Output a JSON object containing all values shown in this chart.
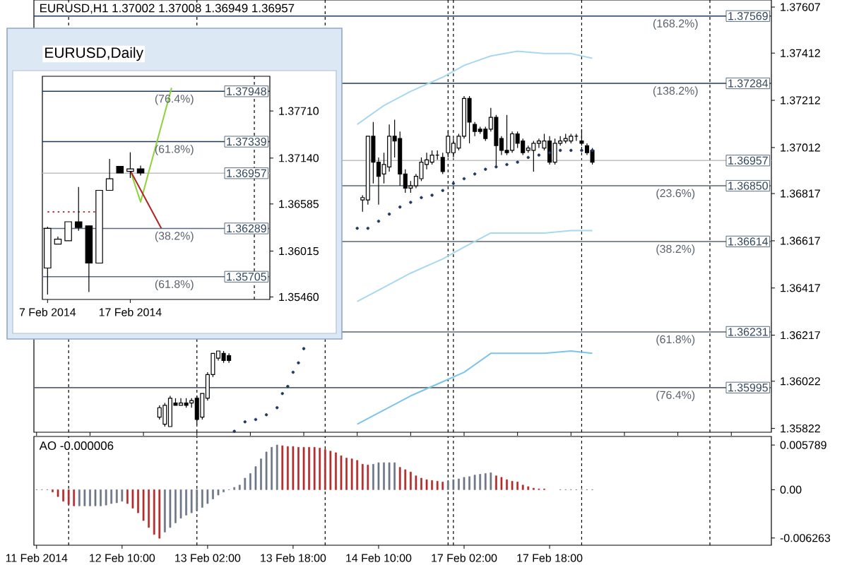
{
  "chart_data": [
    {
      "type": "candlestick",
      "title": "EURUSD,H1 1.37002 1.37008 1.36949 1.36957",
      "categories": [
        null,
        null,
        null,
        null,
        null,
        null,
        null,
        null,
        null,
        null,
        null,
        null,
        null,
        null,
        null,
        null,
        null,
        null,
        null,
        null,
        null,
        null,
        null,
        null,
        null,
        null,
        null,
        null,
        null,
        null,
        null,
        null,
        null,
        null,
        null,
        null,
        null,
        null,
        null,
        null,
        null,
        null,
        null,
        null,
        null,
        null,
        null,
        null,
        null,
        null,
        null,
        null,
        null,
        null,
        null,
        null,
        null,
        null,
        null,
        null,
        null,
        null,
        null,
        null,
        null,
        null,
        null,
        null,
        null,
        null,
        null,
        null,
        null,
        null,
        null,
        null,
        null,
        null,
        null,
        null,
        null,
        null,
        null,
        null,
        null,
        null,
        null,
        null,
        null,
        null,
        null,
        null,
        null,
        null,
        null,
        null,
        null,
        null,
        null,
        null,
        null,
        null,
        null,
        null,
        null,
        null,
        null,
        null,
        null,
        null,
        null,
        null,
        null,
        null,
        null,
        null,
        null,
        null,
        null,
        null,
        null,
        null,
        null,
        null,
        null,
        null,
        null,
        null,
        null,
        null,
        null,
        null,
        null,
        null,
        null,
        null,
        null,
        null
      ],
      "ohlc": [
        null,
        null,
        null,
        null,
        null,
        null,
        null,
        null,
        null,
        null,
        null,
        null,
        null,
        null,
        null,
        null,
        null,
        null,
        null,
        null,
        null,
        null,
        null,
        [
          1.3587,
          1.3592,
          1.3586,
          1.3591
        ],
        [
          1.3584,
          1.3593,
          1.3583,
          1.3592
        ],
        [
          1.3583,
          1.3596,
          1.3583,
          1.3595
        ],
        [
          1.3593,
          1.3595,
          1.3592,
          1.3592
        ],
        [
          1.3592,
          1.3595,
          1.3592,
          1.3593
        ],
        [
          1.3593,
          1.3595,
          1.3591,
          1.3592
        ],
        [
          1.3593,
          1.3595,
          1.3591,
          1.3594
        ],
        [
          1.3595,
          1.3596,
          1.3584,
          1.3586
        ],
        [
          1.3587,
          1.3597,
          1.3586,
          1.3597
        ],
        [
          1.3595,
          1.3606,
          1.3594,
          1.3605
        ],
        [
          1.3605,
          1.3614,
          1.3604,
          1.3614
        ],
        [
          1.3612,
          1.3615,
          1.3611,
          1.3615
        ],
        [
          1.3614,
          1.3615,
          1.361,
          1.3611
        ],
        [
          1.3613,
          1.3614,
          1.361,
          1.3611
        ],
        null,
        null,
        null,
        null,
        null,
        null,
        null,
        null,
        null,
        null,
        null,
        null,
        null,
        null,
        null,
        null,
        null,
        null,
        null,
        null,
        null,
        null,
        null,
        null,
        [
          1.3679,
          1.3681,
          1.3674,
          1.368
        ],
        [
          1.3679,
          1.3706,
          1.3677,
          1.3706
        ],
        [
          1.3706,
          1.3712,
          1.3686,
          1.3695
        ],
        [
          1.3695,
          1.3697,
          1.3677,
          1.3689
        ],
        [
          1.369,
          1.3699,
          1.3686,
          1.3694
        ],
        [
          1.3693,
          1.3711,
          1.3691,
          1.3706
        ],
        [
          1.3706,
          1.3713,
          1.3697,
          1.3704
        ],
        [
          1.3705,
          1.3708,
          1.3685,
          1.369
        ],
        [
          1.369,
          1.3692,
          1.3682,
          1.3684
        ],
        [
          1.3684,
          1.3687,
          1.3682,
          1.3685
        ],
        [
          1.3685,
          1.369,
          1.3684,
          1.3689
        ],
        [
          1.3688,
          1.3697,
          1.3687,
          1.3695
        ],
        [
          1.3694,
          1.3699,
          1.3692,
          1.3696
        ],
        [
          1.3695,
          1.37,
          1.3694,
          1.3698
        ],
        [
          1.3698,
          1.37,
          1.3696,
          1.3698
        ],
        [
          1.3697,
          1.3699,
          1.369,
          1.3691
        ],
        [
          1.3699,
          1.3708,
          1.3697,
          1.3706
        ],
        [
          1.3699,
          1.3705,
          1.3697,
          1.3703
        ],
        [
          1.3701,
          1.3707,
          1.37,
          1.3706
        ],
        [
          1.3706,
          1.3723,
          1.3705,
          1.3722
        ],
        [
          1.3722,
          1.3723,
          1.3703,
          1.3712
        ],
        [
          1.3711,
          1.3712,
          1.3706,
          1.3708
        ],
        [
          1.3709,
          1.371,
          1.3707,
          1.3708
        ],
        [
          1.3709,
          1.371,
          1.3704,
          1.3705
        ],
        [
          1.3709,
          1.3718,
          1.3708,
          1.3714
        ],
        [
          1.3714,
          1.3715,
          1.3693,
          1.3702
        ],
        [
          1.3705,
          1.3706,
          1.3698,
          1.37
        ],
        [
          1.37,
          1.3715,
          1.3698,
          1.3699
        ],
        [
          1.37,
          1.3708,
          1.3699,
          1.3707
        ],
        [
          1.3707,
          1.3708,
          1.3701,
          1.3703
        ],
        [
          1.3704,
          1.3705,
          1.3698,
          1.3699
        ],
        [
          1.37,
          1.3702,
          1.3699,
          1.3701
        ],
        [
          1.37,
          1.3704,
          1.3691,
          1.3703
        ],
        [
          1.3703,
          1.3705,
          1.3701,
          1.3704
        ],
        [
          1.3701,
          1.3707,
          1.37,
          1.3704
        ],
        [
          1.3704,
          1.3706,
          1.3694,
          1.3695
        ],
        [
          1.3695,
          1.3705,
          1.3694,
          1.3703
        ],
        [
          1.3703,
          1.3706,
          1.3702,
          1.3704
        ],
        [
          1.3704,
          1.3707,
          1.3703,
          1.3705
        ],
        [
          1.3704,
          1.3707,
          1.3703,
          1.3706
        ],
        [
          1.3706,
          1.3707,
          1.3704,
          1.3706
        ],
        [
          1.3704,
          1.3709,
          1.3702,
          1.3703
        ],
        [
          1.3702,
          1.3703,
          1.3698,
          1.3699
        ],
        [
          1.37,
          1.3701,
          1.3694,
          1.3695
        ],
        null,
        null,
        null,
        null,
        null,
        null,
        null,
        null,
        null,
        null,
        null,
        null,
        null,
        null,
        null,
        null,
        null,
        null,
        null,
        null,
        null,
        null,
        null,
        null,
        null,
        null,
        null,
        null,
        null,
        null,
        null,
        null,
        null
      ],
      "ylim": [
        1.35806,
        1.37637
      ],
      "yticks": [
        1.37607,
        1.37412,
        1.37212,
        1.37012,
        1.36817,
        1.36617,
        1.36417,
        1.36217,
        1.36022,
        1.35822
      ],
      "tick_labels": "y",
      "series": [
        {
          "type": "line",
          "color": "#a8d8f0",
          "values": [
            null,
            null,
            null,
            null,
            null,
            null,
            null,
            null,
            null,
            null,
            null,
            null,
            null,
            null,
            null,
            null,
            null,
            null,
            null,
            null,
            null,
            null,
            null,
            null,
            null,
            null,
            null,
            null,
            null,
            null,
            null,
            null,
            null,
            null,
            null,
            null,
            null,
            null,
            null,
            null,
            null,
            null,
            null,
            null,
            null,
            null,
            null,
            null,
            null,
            null,
            null,
            null,
            null,
            null,
            null,
            null,
            null,
            null,
            null,
            null,
            1.3711,
            null,
            null,
            null,
            null,
            1.3719,
            null,
            null,
            null,
            null,
            1.3725,
            null,
            null,
            null,
            null,
            null,
            1.3731,
            null,
            null,
            null,
            1.3736,
            null,
            null,
            null,
            null,
            1.374,
            null,
            null,
            null,
            null,
            1.3742,
            null,
            null,
            null,
            null,
            1.3741,
            null,
            null,
            null,
            null,
            1.3741,
            null,
            null,
            null,
            1.3739,
            null,
            null,
            null,
            null,
            null,
            null,
            null,
            null,
            null,
            null,
            null,
            null,
            null,
            null,
            null,
            null,
            null,
            null,
            null,
            null,
            null,
            null,
            null,
            null,
            null,
            null,
            null,
            null,
            null,
            null,
            null,
            null,
            null
          ]
        },
        {
          "type": "line",
          "color": "#a8d8f0",
          "values": [
            null,
            null,
            null,
            null,
            null,
            null,
            null,
            null,
            null,
            null,
            null,
            null,
            null,
            null,
            null,
            null,
            null,
            null,
            null,
            null,
            null,
            null,
            null,
            null,
            null,
            null,
            null,
            null,
            null,
            null,
            null,
            null,
            null,
            null,
            null,
            null,
            null,
            null,
            null,
            null,
            null,
            null,
            null,
            null,
            null,
            null,
            null,
            null,
            null,
            null,
            null,
            null,
            null,
            null,
            null,
            null,
            null,
            null,
            null,
            null,
            1.3636,
            null,
            null,
            null,
            null,
            1.3642,
            null,
            null,
            null,
            null,
            1.3648,
            null,
            null,
            null,
            null,
            null,
            1.3654,
            null,
            null,
            null,
            1.3659,
            null,
            null,
            null,
            null,
            1.3665,
            null,
            null,
            null,
            null,
            1.3665,
            null,
            null,
            null,
            null,
            1.3665,
            null,
            null,
            null,
            null,
            1.3666,
            null,
            null,
            null,
            1.3666,
            null,
            null,
            null,
            null,
            null,
            null,
            null,
            null,
            null,
            null,
            null,
            null,
            null,
            null,
            null,
            null,
            null,
            null,
            null,
            null,
            null,
            null,
            null,
            null,
            null,
            null,
            null,
            null,
            null,
            null,
            null,
            null,
            null
          ]
        },
        {
          "type": "line",
          "color": "#7cc4ec",
          "values": [
            null,
            null,
            null,
            null,
            null,
            null,
            null,
            null,
            null,
            null,
            null,
            null,
            null,
            null,
            null,
            null,
            null,
            null,
            null,
            null,
            null,
            null,
            null,
            null,
            null,
            null,
            null,
            null,
            null,
            null,
            null,
            null,
            null,
            null,
            null,
            null,
            null,
            null,
            null,
            null,
            null,
            null,
            null,
            null,
            null,
            null,
            null,
            null,
            null,
            null,
            null,
            null,
            null,
            null,
            null,
            null,
            null,
            null,
            null,
            null,
            1.3584,
            null,
            null,
            null,
            null,
            1.359,
            null,
            null,
            null,
            null,
            1.3596,
            null,
            null,
            null,
            null,
            null,
            1.3602,
            null,
            null,
            null,
            1.3606,
            null,
            null,
            null,
            null,
            1.3614,
            null,
            null,
            null,
            null,
            1.3614,
            null,
            null,
            null,
            null,
            1.3614,
            null,
            null,
            null,
            null,
            1.3615,
            null,
            null,
            null,
            1.3614,
            null,
            null,
            null,
            null,
            null,
            null,
            null,
            null,
            null,
            null,
            null,
            null,
            null,
            null,
            null,
            null,
            null,
            null,
            null,
            null,
            null,
            null,
            null,
            null,
            null,
            null,
            null,
            null,
            null,
            null,
            null,
            null,
            null
          ]
        },
        {
          "type": "scatter",
          "marker": "circle",
          "color": "#1f3a5f",
          "values": [
            null,
            null,
            null,
            null,
            null,
            null,
            null,
            null,
            null,
            null,
            null,
            null,
            null,
            null,
            null,
            null,
            null,
            null,
            null,
            null,
            null,
            null,
            null,
            null,
            null,
            null,
            null,
            null,
            null,
            null,
            null,
            null,
            null,
            null,
            null,
            null,
            null,
            1.3581,
            null,
            1.3585,
            null,
            1.3586,
            null,
            1.3588,
            null,
            1.3591,
            1.3597,
            1.36,
            1.3606,
            1.361,
            1.3616,
            null,
            null,
            null,
            null,
            null,
            null,
            null,
            null,
            null,
            1.3667,
            null,
            1.3667,
            null,
            1.367,
            null,
            1.3673,
            null,
            1.3676,
            null,
            1.3678,
            null,
            1.368,
            null,
            1.3681,
            null,
            1.3683,
            null,
            1.3686,
            null,
            1.3688,
            null,
            1.369,
            null,
            1.3692,
            null,
            1.3693,
            null,
            1.3694,
            null,
            1.3695,
            null,
            1.3697,
            null,
            1.3698,
            null,
            1.3699,
            null,
            1.37,
            null,
            1.37,
            null,
            1.37,
            null,
            1.37,
            null,
            null,
            null,
            null,
            null,
            null,
            null,
            null,
            null,
            null,
            null,
            null,
            null,
            null,
            null,
            null,
            null,
            null,
            null,
            null,
            null,
            null,
            null,
            null,
            null,
            null,
            null,
            null,
            null,
            null,
            null,
            null,
            null
          ]
        }
      ],
      "ref_lines": [
        {
          "axis": "y",
          "value": 1.37569,
          "label": "1.37569",
          "color": "#1f3a5f"
        },
        {
          "axis": "y",
          "value": 1.37284,
          "label": "1.37284",
          "color": "#1f3a5f"
        },
        {
          "axis": "y",
          "value": 1.3685,
          "label": "1.36850",
          "color": "#5a6470"
        },
        {
          "axis": "y",
          "value": 1.36614,
          "label": "1.36614",
          "color": "#5a6470"
        },
        {
          "axis": "y",
          "value": 1.36231,
          "label": "1.36231",
          "color": "#5a6470"
        },
        {
          "axis": "y",
          "value": 1.35995,
          "label": "1.35995",
          "color": "#5a6470"
        },
        {
          "axis": "y",
          "value": 1.36957,
          "label": "1.36957",
          "color": "#c0c0c0"
        }
      ],
      "annotations": [
        {
          "text": "(168.2%)",
          "y": 1.37569
        },
        {
          "text": "(138.2%)",
          "y": 1.37284
        },
        {
          "text": "(23.6%)",
          "y": 1.3685
        },
        {
          "text": "(38.2%)",
          "y": 1.36614
        },
        {
          "text": "(61.8%)",
          "y": 1.36231
        },
        {
          "text": "(76.4%)",
          "y": 1.35995
        }
      ]
    },
    {
      "type": "candlestick",
      "title": "EURUSD,Daily",
      "categories": [
        "7 Feb 2014",
        null,
        null,
        null,
        null,
        null,
        null,
        null,
        "17 Feb 2014",
        null,
        null,
        null,
        null,
        null,
        null,
        null,
        null,
        null,
        null,
        null,
        null,
        null
      ],
      "ohlc": [
        [
          1.3581,
          1.3631,
          1.3549,
          1.3629
        ],
        [
          1.361,
          1.3619,
          1.361,
          1.3616
        ],
        [
          1.3614,
          1.3637,
          1.3614,
          1.3637
        ],
        [
          1.3637,
          1.3679,
          1.3626,
          1.363
        ],
        [
          1.3632,
          1.3632,
          1.3552,
          1.3587
        ],
        [
          1.3587,
          1.3675,
          1.3587,
          1.3675
        ],
        [
          1.3675,
          1.3713,
          1.3675,
          1.3689
        ],
        [
          1.3704,
          1.3704,
          1.3696,
          1.3696
        ],
        [
          1.3698,
          1.3721,
          1.369,
          1.3701
        ],
        [
          1.3701,
          1.3705,
          1.3693,
          1.3696
        ],
        null,
        null,
        null,
        null,
        null,
        null,
        null,
        null,
        null,
        null,
        null,
        null
      ],
      "ylim": [
        1.3543,
        1.3813
      ],
      "yticks": [
        {
          "value": 1.3771,
          "label": "1.37710"
        },
        {
          "value": 1.3714,
          "label": "1.37140"
        },
        1.36585,
        1.36015,
        {
          "value": 1.3546,
          "label": "1.35460"
        }
      ],
      "series": [
        {
          "type": "line",
          "color": "#cc3333",
          "line_style": "dotted",
          "values": [
            1.3649,
            null,
            null,
            null,
            null,
            1.3649,
            null,
            null,
            null,
            null,
            null,
            null,
            null,
            null,
            null,
            null,
            null,
            null,
            null,
            null,
            null,
            null
          ]
        },
        {
          "type": "line",
          "color": "#8cd43c",
          "values": [
            null,
            null,
            null,
            null,
            null,
            null,
            null,
            null,
            1.3699,
            1.3661,
            null,
            null,
            1.3799,
            null,
            null,
            null,
            null,
            null,
            null,
            null,
            null,
            null
          ]
        },
        {
          "type": "line",
          "color": "#b22222",
          "values": [
            null,
            null,
            null,
            null,
            null,
            null,
            null,
            null,
            1.3699,
            null,
            null,
            1.3629,
            null,
            null,
            null,
            null,
            null,
            null,
            null,
            null,
            null,
            null
          ]
        }
      ],
      "ref_lines": [
        {
          "axis": "y",
          "value": 1.37948,
          "label": "1.37948",
          "color": "#1f3a5f"
        },
        {
          "axis": "y",
          "value": 1.37339,
          "label": "1.37339",
          "color": "#1f3a5f"
        },
        {
          "axis": "y",
          "value": 1.36289,
          "label": "1.36289",
          "color": "#5a6a8a"
        },
        {
          "axis": "y",
          "value": 1.35705,
          "label": "1.35705",
          "color": "#5a6a8a"
        },
        {
          "axis": "y",
          "value": 1.36957,
          "label": "1.36957",
          "color": "#c0c0c0"
        }
      ],
      "annotations": [
        {
          "text": "(76.4%)",
          "y": 1.37948
        },
        {
          "text": "(61.8%)",
          "y": 1.37339
        },
        {
          "text": "(38.2%)",
          "y": 1.36289
        },
        {
          "text": "(61.8%)",
          "y": 1.35705
        }
      ]
    },
    {
      "type": "bar",
      "title": "AO -0.000006",
      "categories": [
        "11 Feb 2014",
        null,
        null,
        null,
        null,
        null,
        null,
        null,
        null,
        null,
        null,
        null,
        null,
        null,
        null,
        null,
        "12 Feb 10:00",
        null,
        null,
        null,
        null,
        null,
        null,
        null,
        null,
        null,
        null,
        null,
        null,
        null,
        null,
        null,
        "13 Feb 02:00",
        null,
        null,
        null,
        null,
        null,
        null,
        null,
        null,
        null,
        null,
        null,
        null,
        null,
        null,
        null,
        "13 Feb 18:00",
        null,
        null,
        null,
        null,
        null,
        null,
        null,
        null,
        null,
        null,
        null,
        null,
        null,
        null,
        null,
        "14 Feb 10:00",
        null,
        null,
        null,
        null,
        null,
        null,
        null,
        null,
        null,
        null,
        null,
        null,
        null,
        null,
        null,
        "17 Feb 02:00",
        null,
        null,
        null,
        null,
        null,
        null,
        null,
        null,
        null,
        null,
        null,
        null,
        null,
        null,
        null,
        "17 Feb 18:00",
        null,
        null,
        null,
        null,
        null,
        null,
        null,
        null,
        null,
        null,
        null,
        null,
        null,
        null,
        null,
        null,
        null,
        null,
        null,
        null,
        null,
        null,
        null,
        null,
        null,
        null,
        null,
        null,
        null,
        null,
        null,
        null,
        null,
        null,
        null,
        null,
        null,
        null,
        null,
        null,
        null
      ],
      "values": [
        0,
        0,
        0,
        -0.0003,
        -0.0009,
        -0.0015,
        -0.0019,
        -0.0021,
        -0.0021,
        -0.0021,
        -0.0021,
        -0.0021,
        -0.0021,
        -0.002,
        -0.0018,
        -0.0017,
        -0.0015,
        -0.0018,
        -0.0024,
        -0.003,
        -0.004,
        -0.0049,
        -0.0058,
        -0.0063,
        -0.0055,
        -0.0049,
        -0.0043,
        -0.0037,
        -0.0033,
        -0.003,
        -0.0027,
        -0.0023,
        -0.0018,
        -0.0012,
        -0.0007,
        -0.0003,
        0,
        0.0003,
        0.0006,
        0.0015,
        0.0021,
        0.003,
        0.004,
        0.0049,
        0.0055,
        0.0058,
        0.0057,
        0.0056,
        0.0056,
        0.0055,
        0.0055,
        0.0055,
        0.0055,
        0.0054,
        0.0052,
        0.005,
        0.0048,
        0.0044,
        0.0041,
        0.004,
        0.0038,
        0.0033,
        0.0032,
        0.0033,
        0.0035,
        0.0035,
        0.0035,
        0.0035,
        0.0029,
        0.0026,
        0.0023,
        0.0018,
        0.0015,
        0.0013,
        0.0012,
        0.0011,
        0.001,
        0.0011,
        0.0013,
        0.0014,
        0.0016,
        0.0017,
        0.0019,
        0.002,
        0.0021,
        0.0022,
        0.0018,
        0.0016,
        0.0013,
        0.0011,
        0.001,
        0.0006,
        0.0004,
        0.0002,
        0.0001,
        0.0001,
        null,
        null,
        0,
        0,
        0,
        0,
        0,
        0,
        0,
        null,
        null,
        null,
        null,
        null,
        null,
        null,
        null,
        null,
        null,
        null,
        null,
        null,
        null,
        null,
        null,
        null,
        null,
        null,
        null,
        null,
        null,
        null,
        null,
        null,
        null,
        null,
        null,
        null,
        null,
        null,
        null,
        null
      ],
      "colors": [
        "#6b7585",
        "#6b7585",
        "#6b7585",
        "#b22a2a",
        "#b22a2a",
        "#b22a2a",
        "#b22a2a",
        "#b22a2a",
        "#6b7585",
        "#6b7585",
        "#6b7585",
        "#6b7585",
        "#6b7585",
        "#6b7585",
        "#6b7585",
        "#6b7585",
        "#6b7585",
        "#b22a2a",
        "#b22a2a",
        "#b22a2a",
        "#b22a2a",
        "#b22a2a",
        "#b22a2a",
        "#b22a2a",
        "#6b7585",
        "#6b7585",
        "#6b7585",
        "#6b7585",
        "#6b7585",
        "#6b7585",
        "#6b7585",
        "#6b7585",
        "#6b7585",
        "#6b7585",
        "#6b7585",
        "#6b7585",
        "#6b7585",
        "#6b7585",
        "#6b7585",
        "#6b7585",
        "#6b7585",
        "#6b7585",
        "#6b7585",
        "#6b7585",
        "#6b7585",
        "#6b7585",
        "#b22a2a",
        "#b22a2a",
        "#b22a2a",
        "#b22a2a",
        "#b22a2a",
        "#b22a2a",
        "#b22a2a",
        "#b22a2a",
        "#b22a2a",
        "#b22a2a",
        "#b22a2a",
        "#b22a2a",
        "#b22a2a",
        "#b22a2a",
        "#b22a2a",
        "#b22a2a",
        "#b22a2a",
        "#6b7585",
        "#6b7585",
        "#6b7585",
        "#6b7585",
        "#6b7585",
        "#b22a2a",
        "#b22a2a",
        "#b22a2a",
        "#b22a2a",
        "#b22a2a",
        "#b22a2a",
        "#b22a2a",
        "#b22a2a",
        "#b22a2a",
        "#6b7585",
        "#6b7585",
        "#6b7585",
        "#6b7585",
        "#6b7585",
        "#6b7585",
        "#6b7585",
        "#6b7585",
        "#6b7585",
        "#b22a2a",
        "#b22a2a",
        "#b22a2a",
        "#b22a2a",
        "#b22a2a",
        "#b22a2a",
        "#b22a2a",
        "#b22a2a",
        "#b22a2a",
        "#b22a2a",
        "#6b7585",
        "#6b7585",
        "#6b7585",
        "#6b7585",
        "#6b7585",
        "#6b7585",
        "#6b7585",
        "#6b7585",
        "#6b7585",
        null,
        null,
        null,
        null,
        null,
        null,
        null,
        null,
        null,
        null,
        null,
        null,
        null,
        null,
        null,
        null,
        null,
        null,
        null,
        null,
        null,
        null,
        null,
        null,
        null,
        null,
        null,
        null,
        null,
        null,
        null,
        null,
        null
      ],
      "ylim": [
        -0.0072,
        0.0069
      ],
      "yticks": [
        0.005789,
        {
          "value": 0,
          "label": "0.00"
        },
        -0.006263
      ]
    }
  ]
}
